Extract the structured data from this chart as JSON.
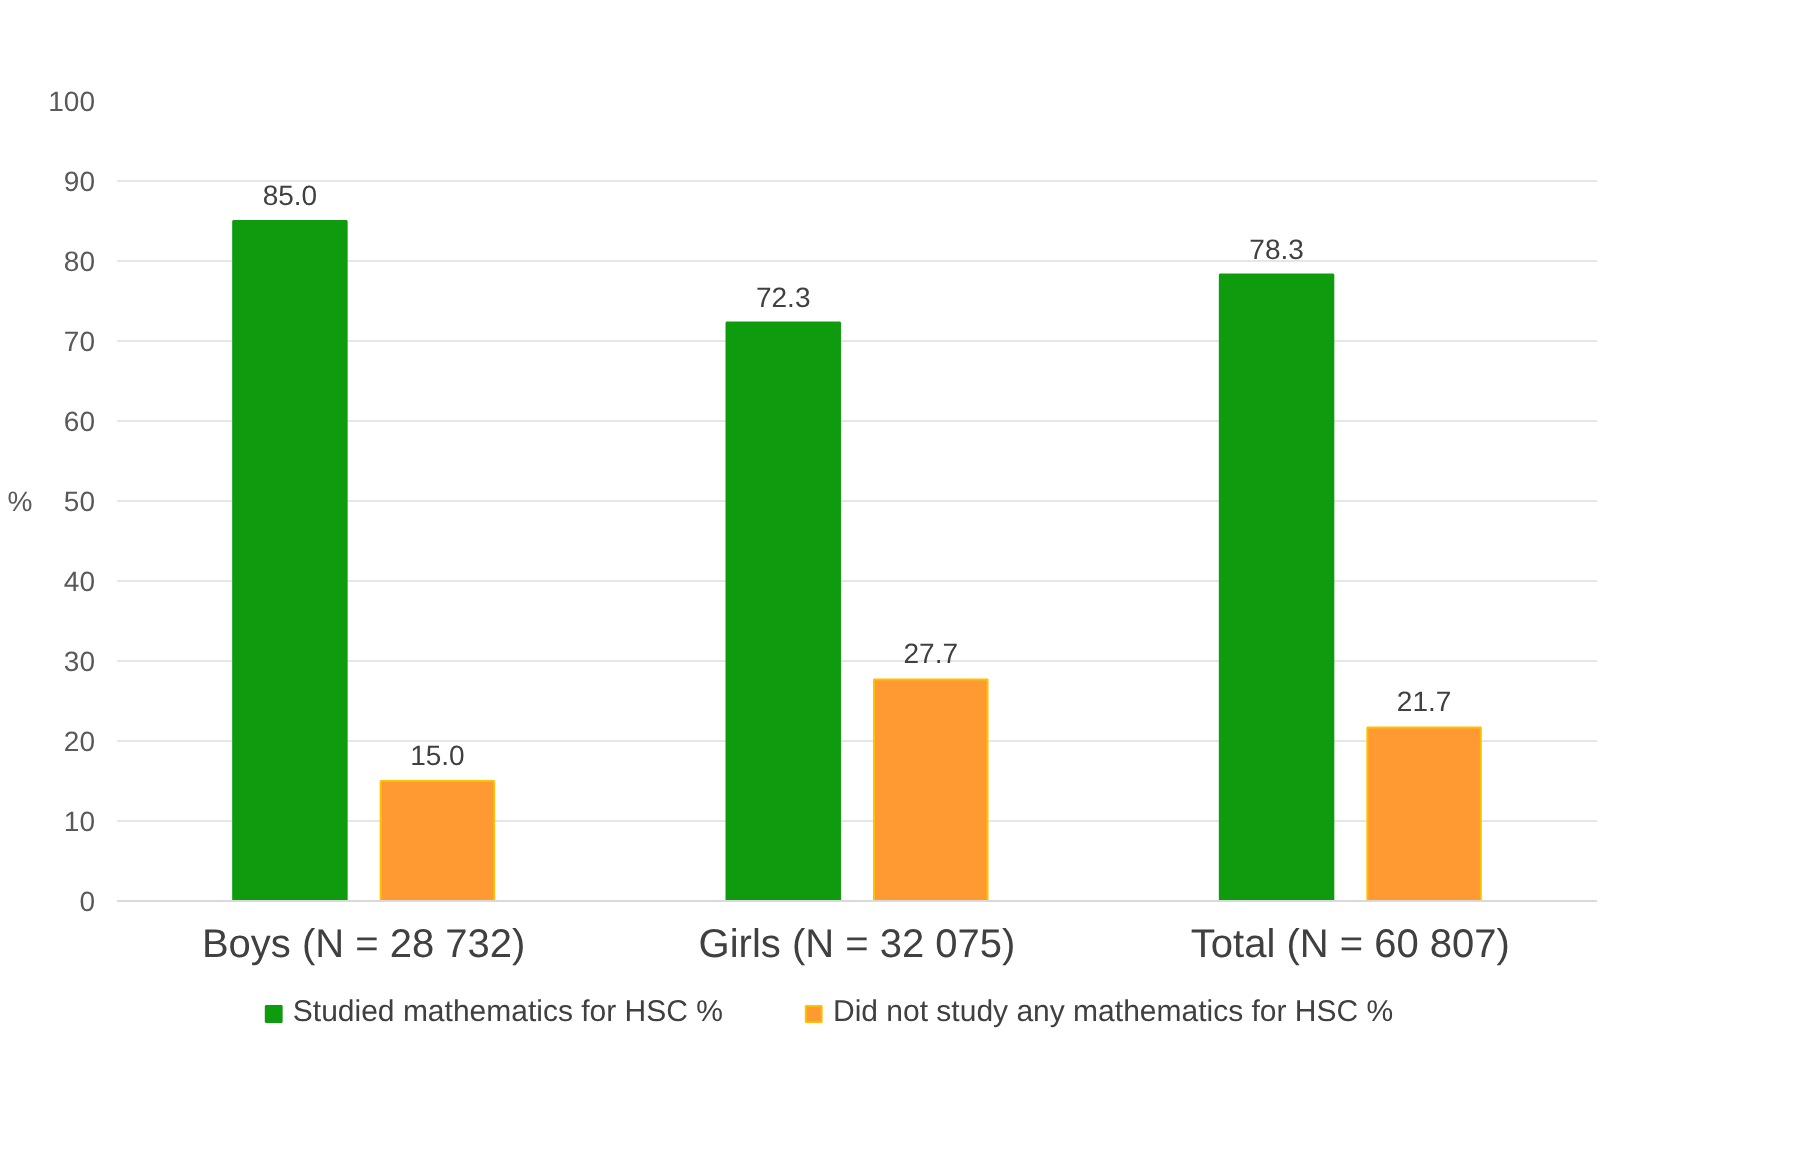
{
  "chart_data": {
    "type": "bar",
    "ylabel": "%",
    "categories": [
      "Boys (N = 28 732)",
      "Girls (N = 32 075)",
      "Total (N = 60 807)"
    ],
    "series": [
      {
        "name": "Studied mathematics for HSC %",
        "color": "#0e9c0e",
        "values": [
          85.0,
          72.3,
          78.3
        ],
        "value_labels": [
          "85.0",
          "72.3",
          "78.3"
        ]
      },
      {
        "name": "Did not study any mathematics for HSC %",
        "color": "#ff9a33",
        "values": [
          15.0,
          27.7,
          21.7
        ],
        "value_labels": [
          "15.0",
          "27.7",
          "21.7"
        ]
      }
    ],
    "ylim": [
      0,
      100
    ],
    "yticks": [
      0,
      10,
      20,
      30,
      40,
      50,
      60,
      70,
      80,
      90,
      100
    ],
    "grid": "y",
    "legend": "bottom"
  }
}
